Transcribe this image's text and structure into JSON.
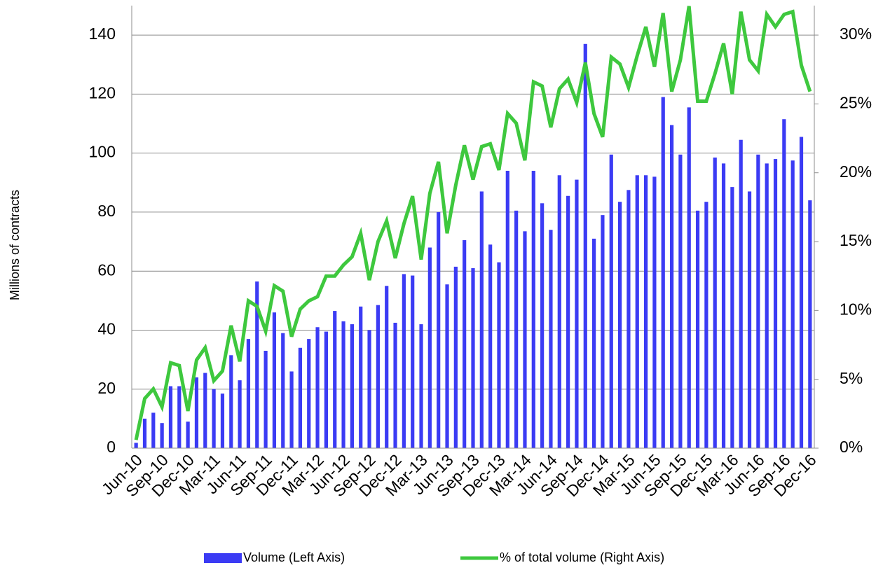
{
  "chart_data": {
    "type": "bar-line",
    "y_axis_label": "Millions of contracts",
    "categories": [
      "Jun-10",
      null,
      null,
      "Sep-10",
      null,
      null,
      "Dec-10",
      null,
      null,
      "Mar-11",
      null,
      null,
      "Jun-11",
      null,
      null,
      "Sep-11",
      null,
      null,
      "Dec-11",
      null,
      null,
      "Mar-12",
      null,
      null,
      "Jun-12",
      null,
      null,
      "Sep-12",
      null,
      null,
      "Dec-12",
      null,
      null,
      "Mar-13",
      null,
      null,
      "Jun-13",
      null,
      null,
      "Sep-13",
      null,
      null,
      "Dec-13",
      null,
      null,
      "Mar-14",
      null,
      null,
      "Jun-14",
      null,
      null,
      "Sep-14",
      null,
      null,
      "Dec-14",
      null,
      null,
      "Mar-15",
      null,
      null,
      "Jun-15",
      null,
      null,
      "Sep-15",
      null,
      null,
      "Dec-15",
      null,
      null,
      "Mar-16",
      null,
      null,
      "Jun-16",
      null,
      null,
      "Sep-16",
      null,
      null,
      "Dec-16"
    ],
    "series": [
      {
        "name": "Volume (Left Axis)",
        "type": "bar",
        "color": "#3b3bf4",
        "axis": "y",
        "values": [
          1.8,
          10,
          12,
          8.5,
          21,
          21,
          9,
          24,
          25.5,
          20,
          18.5,
          31.5,
          23,
          37,
          56.5,
          33,
          46,
          39,
          26,
          34,
          37,
          41,
          39.5,
          46.5,
          43,
          42,
          48,
          40,
          48.5,
          55,
          42.5,
          59,
          58.5,
          42,
          68,
          80,
          55.5,
          61.5,
          70.5,
          61,
          87,
          69,
          63,
          94,
          80.5,
          73.5,
          94,
          83,
          74,
          92.5,
          85.5,
          91,
          137,
          71,
          79,
          99.5,
          83.5,
          87.5,
          92.5,
          92.5,
          92,
          119,
          109.5,
          99.5,
          115.5,
          80.5,
          83.5,
          98.5,
          96.5,
          88.5,
          104.5,
          87,
          99.5,
          96.5,
          98,
          111.5,
          97.5,
          105.5,
          84
        ]
      },
      {
        "name": "% of total volume (Right Axis)",
        "type": "line",
        "color": "#3ec83e",
        "axis": "y2",
        "values": [
          0.6,
          3.6,
          4.3,
          3.0,
          6.2,
          6.0,
          2.7,
          6.4,
          7.3,
          4.9,
          5.6,
          8.9,
          6.3,
          10.7,
          10.3,
          8.5,
          11.8,
          11.4,
          8.1,
          10.1,
          10.7,
          11.0,
          12.5,
          12.5,
          13.3,
          13.9,
          15.6,
          12.2,
          15.0,
          16.5,
          13.8,
          16.3,
          18.3,
          13.7,
          18.5,
          20.8,
          15.6,
          19.1,
          22.0,
          19.5,
          21.9,
          22.1,
          20.2,
          24.3,
          23.6,
          20.9,
          26.6,
          26.3,
          23.3,
          26.1,
          26.8,
          25.1,
          28.0,
          24.3,
          22.6,
          28.4,
          27.9,
          26.2,
          28.5,
          30.6,
          27.7,
          31.6,
          25.9,
          28.2,
          32.1,
          25.2,
          25.2,
          27.2,
          29.4,
          25.7,
          31.7,
          28.2,
          27.4,
          31.5,
          30.6,
          31.5,
          31.7,
          27.8,
          25.9
        ]
      }
    ],
    "ylim": [
      0,
      150
    ],
    "yticks": [
      0,
      20,
      40,
      60,
      80,
      100,
      120,
      140
    ],
    "y2lim": [
      0,
      32.14
    ],
    "y2ticks": [
      {
        "value": 0,
        "label": "0%"
      },
      {
        "value": 5,
        "label": "5%"
      },
      {
        "value": 10,
        "label": "10%"
      },
      {
        "value": 15,
        "label": "15%"
      },
      {
        "value": 20,
        "label": "20%"
      },
      {
        "value": 25,
        "label": "25%"
      },
      {
        "value": 30,
        "label": "30%"
      }
    ],
    "grid": true,
    "legend": "bottom"
  }
}
